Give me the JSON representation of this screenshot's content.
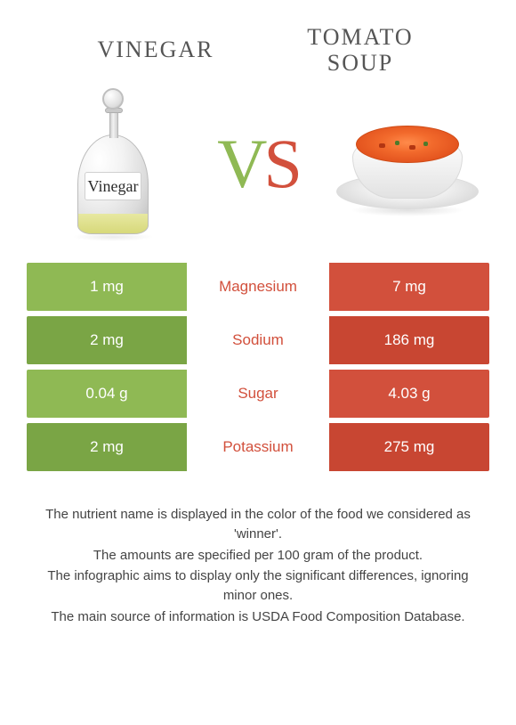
{
  "colors": {
    "vinegar": "#8fb954",
    "vinegar_dark": "#7aa545",
    "soup": "#d2503c",
    "soup_dark": "#c84632",
    "title_text": "#555555",
    "mid_text_win_left": "#d2503c",
    "mid_text_win_right": "#8fb954",
    "body_text": "#444444"
  },
  "titles": {
    "left": "VINEGAR",
    "right_line1": "TOMATO",
    "right_line2": "SOUP"
  },
  "hero": {
    "vinegar_label": "Vinegar",
    "vs_v": "V",
    "vs_s": "S"
  },
  "rows": [
    {
      "left": "1 mg",
      "mid": "Magnesium",
      "right": "7 mg",
      "winner": "right"
    },
    {
      "left": "2 mg",
      "mid": "Sodium",
      "right": "186 mg",
      "winner": "right"
    },
    {
      "left": "0.04 g",
      "mid": "Sugar",
      "right": "4.03 g",
      "winner": "right"
    },
    {
      "left": "2 mg",
      "mid": "Potassium",
      "right": "275 mg",
      "winner": "right"
    }
  ],
  "footnotes": [
    "The nutrient name is displayed in the color of the food we considered as 'winner'.",
    "The amounts are specified per 100 gram of the product.",
    "The infographic aims to display only the significant differences, ignoring minor ones.",
    "The main source of information is USDA Food Composition Database."
  ]
}
